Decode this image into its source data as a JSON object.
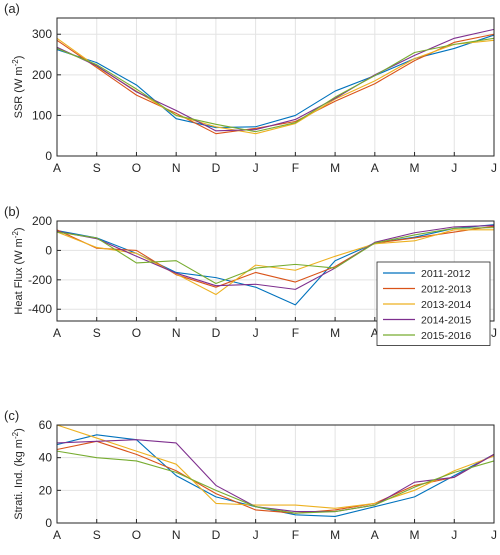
{
  "chart_data": [
    {
      "type": "line",
      "panel_label": "(a)",
      "ylabel": "SSR (W m",
      "ylabel_sup": "-2",
      "ylabel_end": ")",
      "ylim": [
        0,
        340
      ],
      "yticks": [
        0,
        100,
        200,
        300
      ],
      "grid": true,
      "categories": [
        "A",
        "S",
        "O",
        "N",
        "D",
        "J",
        "F",
        "M",
        "A",
        "M",
        "J",
        "J"
      ],
      "series": [
        {
          "name": "2011-2012",
          "color": "#0072BD",
          "values": [
            262,
            230,
            175,
            92,
            70,
            72,
            100,
            160,
            198,
            240,
            265,
            298
          ]
        },
        {
          "name": "2012-2013",
          "color": "#D95319",
          "values": [
            285,
            218,
            150,
            105,
            55,
            68,
            85,
            135,
            178,
            235,
            280,
            300
          ]
        },
        {
          "name": "2013-2014",
          "color": "#EDB120",
          "values": [
            290,
            220,
            160,
            100,
            72,
            55,
            80,
            140,
            185,
            240,
            275,
            285
          ]
        },
        {
          "name": "2014-2015",
          "color": "#7E2F8E",
          "values": [
            268,
            222,
            158,
            112,
            62,
            65,
            90,
            142,
            200,
            248,
            290,
            312
          ]
        },
        {
          "name": "2015-2016",
          "color": "#77AC30",
          "values": [
            265,
            225,
            165,
            100,
            78,
            60,
            82,
            145,
            198,
            255,
            275,
            290
          ]
        }
      ]
    },
    {
      "type": "line",
      "panel_label": "(b)",
      "ylabel": "Heat Flux (W m",
      "ylabel_sup": "-2",
      "ylabel_end": ")",
      "ylim": [
        -480,
        200
      ],
      "yticks": [
        -400,
        -200,
        0,
        200
      ],
      "grid": true,
      "legend_position": "right",
      "categories": [
        "A",
        "S",
        "O",
        "N",
        "D",
        "J",
        "F",
        "M",
        "A",
        "M",
        "J",
        "J"
      ],
      "series": [
        {
          "name": "2011-2012",
          "color": "#0072BD",
          "values": [
            135,
            85,
            -20,
            -150,
            -185,
            -250,
            -370,
            -70,
            50,
            90,
            150,
            175
          ]
        },
        {
          "name": "2012-2013",
          "color": "#D95319",
          "values": [
            140,
            15,
            0,
            -165,
            -250,
            -150,
            -215,
            -110,
            50,
            85,
            125,
            165
          ]
        },
        {
          "name": "2013-2014",
          "color": "#EDB120",
          "values": [
            125,
            20,
            -20,
            -160,
            -300,
            -100,
            -135,
            -40,
            45,
            65,
            140,
            140
          ]
        },
        {
          "name": "2014-2015",
          "color": "#7E2F8E",
          "values": [
            130,
            80,
            -40,
            -155,
            -240,
            -230,
            -265,
            -120,
            55,
            120,
            160,
            170
          ]
        },
        {
          "name": "2015-2016",
          "color": "#77AC30",
          "values": [
            125,
            85,
            -85,
            -70,
            -225,
            -120,
            -95,
            -120,
            50,
            105,
            150,
            155
          ]
        }
      ]
    },
    {
      "type": "line",
      "panel_label": "(c)",
      "ylabel": "Strati. Ind. (kg m",
      "ylabel_sup": "-2",
      "ylabel_end": ")",
      "ylim": [
        0,
        60
      ],
      "yticks": [
        0,
        20,
        40,
        60
      ],
      "grid": true,
      "categories": [
        "A",
        "S",
        "O",
        "N",
        "D",
        "J",
        "F",
        "M",
        "A",
        "M",
        "J",
        "J"
      ],
      "series": [
        {
          "name": "2011-2012",
          "color": "#0072BD",
          "values": [
            48,
            54,
            51,
            29,
            16,
            10,
            5,
            4,
            10,
            16,
            29,
            42
          ]
        },
        {
          "name": "2012-2013",
          "color": "#D95319",
          "values": [
            45,
            50,
            42,
            32,
            18,
            8,
            6,
            8,
            12,
            23,
            28,
            42
          ]
        },
        {
          "name": "2013-2014",
          "color": "#EDB120",
          "values": [
            60,
            52,
            44,
            36,
            12,
            11,
            11,
            9,
            12,
            20,
            32,
            41
          ]
        },
        {
          "name": "2014-2015",
          "color": "#7E2F8E",
          "values": [
            49,
            50,
            51,
            49,
            23,
            10,
            7,
            7,
            11,
            25,
            28,
            42
          ]
        },
        {
          "name": "2015-2016",
          "color": "#77AC30",
          "values": [
            44,
            40,
            38,
            31,
            20,
            10,
            6,
            7,
            11,
            22,
            31,
            38
          ]
        }
      ]
    }
  ]
}
